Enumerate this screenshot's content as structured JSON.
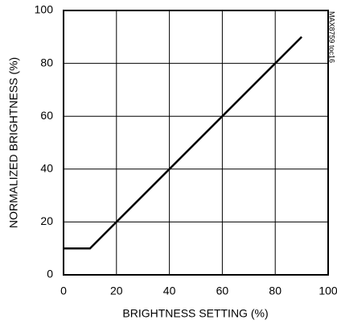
{
  "chart_data": {
    "type": "line",
    "x_label": "BRIGHTNESS SETTING (%)",
    "y_label": "NORMALIZED BRIGHTNESS (%)",
    "annotation": "MAX8759 toc16",
    "x": [
      0,
      10,
      90
    ],
    "values": [
      10,
      10,
      90
    ],
    "color": "#000000",
    "xlim": [
      0,
      100
    ],
    "xticks": [
      0,
      20,
      40,
      60,
      80,
      100
    ],
    "ylim": [
      0,
      100
    ],
    "yticks": [
      0,
      20,
      40,
      60,
      80,
      100
    ],
    "grid": true
  }
}
